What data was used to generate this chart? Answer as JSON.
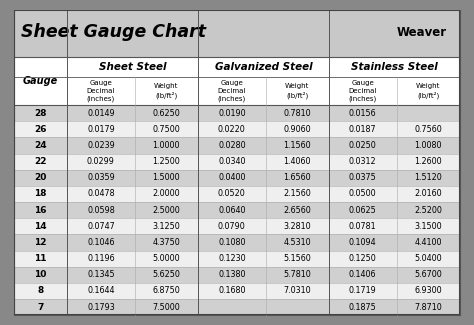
{
  "title": "Sheet Gauge Chart",
  "background_outer": "#888888",
  "background_inner": "#ffffff",
  "header_bg": "#c8c8c8",
  "row_bg_dark": "#d0d0d0",
  "row_bg_light": "#efefef",
  "col_sections": [
    "Sheet Steel",
    "Galvanized Steel",
    "Stainless Steel"
  ],
  "gauges": [
    28,
    26,
    24,
    22,
    20,
    18,
    16,
    14,
    12,
    11,
    10,
    8,
    7
  ],
  "sheet_steel_decimal": [
    "0.0149",
    "0.0179",
    "0.0239",
    "0.0299",
    "0.0359",
    "0.0478",
    "0.0598",
    "0.0747",
    "0.1046",
    "0.1196",
    "0.1345",
    "0.1644",
    "0.1793"
  ],
  "sheet_steel_weight": [
    "0.6250",
    "0.7500",
    "1.0000",
    "1.2500",
    "1.5000",
    "2.0000",
    "2.5000",
    "3.1250",
    "4.3750",
    "5.0000",
    "5.6250",
    "6.8750",
    "7.5000"
  ],
  "galv_decimal": [
    "0.0190",
    "0.0220",
    "0.0280",
    "0.0340",
    "0.0400",
    "0.0520",
    "0.0640",
    "0.0790",
    "0.1080",
    "0.1230",
    "0.1380",
    "0.1680",
    ""
  ],
  "galv_weight": [
    "0.7810",
    "0.9060",
    "1.1560",
    "1.4060",
    "1.6560",
    "2.1560",
    "2.6560",
    "3.2810",
    "4.5310",
    "5.1560",
    "5.7810",
    "7.0310",
    ""
  ],
  "stainless_decimal": [
    "0.0156",
    "0.0187",
    "0.0250",
    "0.0312",
    "0.0375",
    "0.0500",
    "0.0625",
    "0.0781",
    "0.1094",
    "0.1250",
    "0.1406",
    "0.1719",
    "0.1875"
  ],
  "stainless_weight": [
    "",
    "0.7560",
    "1.0080",
    "1.2600",
    "1.5120",
    "2.0160",
    "2.5200",
    "3.1500",
    "4.4100",
    "5.0400",
    "5.6700",
    "6.9300",
    "7.8710"
  ]
}
